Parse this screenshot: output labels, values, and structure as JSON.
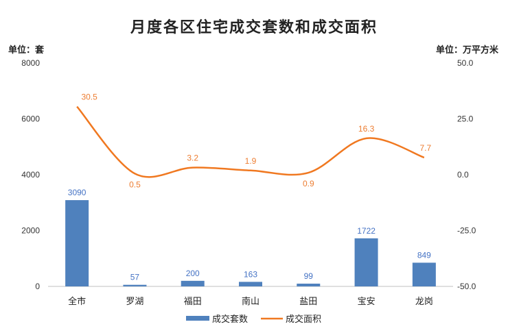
{
  "chart_data": {
    "type": "bar",
    "title": "月度各区住宅成交套数和成交面积",
    "unit_left": "单位：套",
    "unit_right": "单位：万平方米",
    "categories": [
      "全市",
      "罗湖",
      "福田",
      "南山",
      "盐田",
      "宝安",
      "龙岗"
    ],
    "series": [
      {
        "name": "成交套数",
        "type": "bar",
        "axis": "left",
        "color": "#4f81bd",
        "values": [
          3090,
          57,
          200,
          163,
          99,
          1722,
          849
        ],
        "labels": [
          "3090",
          "57",
          "200",
          "163",
          "99",
          "1722",
          "849"
        ]
      },
      {
        "name": "成交面积",
        "type": "line",
        "axis": "right",
        "color": "#f07820",
        "values": [
          30.5,
          0.5,
          3.2,
          1.9,
          0.9,
          16.3,
          7.7
        ],
        "labels": [
          "30.5",
          "0.5",
          "3.2",
          "1.9",
          "0.9",
          "16.3",
          "7.7"
        ]
      }
    ],
    "y_left": {
      "min": 0,
      "max": 8000,
      "ticks": [
        "0",
        "2000",
        "4000",
        "6000",
        "8000"
      ]
    },
    "y_right": {
      "min": -50,
      "max": 50,
      "ticks": [
        "-50.0",
        "-25.0",
        "0.0",
        "25.0",
        "50.0"
      ]
    },
    "grid": false,
    "legend": "bottom"
  }
}
